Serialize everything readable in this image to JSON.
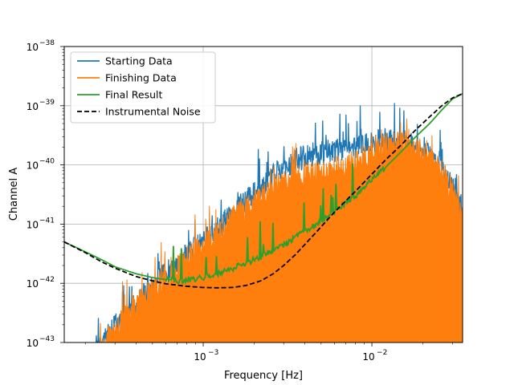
{
  "chart_data": {
    "type": "line",
    "title": "",
    "xlabel": "Frequency [Hz]",
    "ylabel": "Channel A",
    "xscale": "log",
    "yscale": "log",
    "xlim": [
      0.00015,
      0.0345
    ],
    "ylim": [
      1e-43,
      1e-38
    ],
    "grid": true,
    "legend_position": "top-left",
    "x_ticks": [
      {
        "value": 0.001,
        "label": "10",
        "exp": "−3"
      },
      {
        "value": 0.01,
        "label": "10",
        "exp": "−2"
      }
    ],
    "y_ticks": [
      {
        "value": 1e-43,
        "label": "10",
        "exp": "−43"
      },
      {
        "value": 1e-42,
        "label": "10",
        "exp": "−42"
      },
      {
        "value": 1e-41,
        "label": "10",
        "exp": "−41"
      },
      {
        "value": 1e-40,
        "label": "10",
        "exp": "−40"
      },
      {
        "value": 1e-39,
        "label": "10",
        "exp": "−39"
      },
      {
        "value": 1e-38,
        "label": "10",
        "exp": "−38"
      }
    ],
    "series": [
      {
        "name": "Starting Data",
        "color": "#1f77b4",
        "style": "solid",
        "x": [
          0.00023,
          0.00028,
          0.00035,
          0.00045,
          0.0006,
          0.0008,
          0.001,
          0.0013,
          0.0017,
          0.0022,
          0.0028,
          0.0035,
          0.0045,
          0.006,
          0.008,
          0.01,
          0.012,
          0.015,
          0.018,
          0.022,
          0.026,
          0.03,
          0.0345
        ],
        "y": [
          6e-44,
          1.5e-43,
          3e-43,
          6e-43,
          1.5e-42,
          3e-42,
          5e-42,
          1e-41,
          2.2e-41,
          4e-41,
          8e-41,
          1.2e-40,
          1.5e-40,
          1.8e-40,
          2.1e-40,
          2.4e-40,
          2.6e-40,
          2.5e-40,
          2.1e-40,
          1.4e-40,
          8e-41,
          4e-41,
          1.6e-41
        ]
      },
      {
        "name": "Finishing Data",
        "color": "#ff7f0e",
        "style": "filled",
        "x": [
          0.00023,
          0.00028,
          0.00035,
          0.00045,
          0.0006,
          0.0008,
          0.001,
          0.0013,
          0.0017,
          0.0022,
          0.0028,
          0.0035,
          0.0045,
          0.006,
          0.008,
          0.01,
          0.012,
          0.015,
          0.018,
          0.022,
          0.026,
          0.03,
          0.0345
        ],
        "y": [
          5e-44,
          1.3e-43,
          2.7e-43,
          5.5e-43,
          1.3e-42,
          2.6e-42,
          4.2e-42,
          8e-42,
          1.7e-41,
          2.8e-41,
          4.5e-41,
          6e-41,
          7e-41,
          8.5e-41,
          1.1e-40,
          1.6e-40,
          2.1e-40,
          2.3e-40,
          2e-40,
          1.3e-40,
          7.5e-41,
          3.5e-41,
          1.2e-41
        ]
      },
      {
        "name": "Final Result",
        "color": "#2ca02c",
        "style": "solid",
        "x": [
          0.00015,
          0.0002,
          0.00025,
          0.0003,
          0.0004,
          0.0005,
          0.0006,
          0.0007,
          0.0008,
          0.001,
          0.0012,
          0.0015,
          0.002,
          0.0025,
          0.003,
          0.004,
          0.005,
          0.006,
          0.008,
          0.01,
          0.012,
          0.015,
          0.018,
          0.022,
          0.026,
          0.03,
          0.0345
        ],
        "y": [
          5e-42,
          3.4e-42,
          2.5e-42,
          1.9e-42,
          1.45e-42,
          1.25e-42,
          1.15e-42,
          1.1e-42,
          1.12e-42,
          1.25e-42,
          1.45e-42,
          1.8e-42,
          2.5e-42,
          3.3e-42,
          4.5e-42,
          7.5e-42,
          1.1e-41,
          1.6e-41,
          3e-41,
          5.5e-41,
          9e-41,
          1.7e-40,
          2.9e-40,
          5e-40,
          8.5e-40,
          1.3e-39,
          1.6e-39
        ]
      },
      {
        "name": "Instrumental Noise",
        "color": "#000000",
        "style": "dashed",
        "x": [
          0.00015,
          0.0002,
          0.00025,
          0.0003,
          0.0004,
          0.0005,
          0.0006,
          0.0008,
          0.001,
          0.0012,
          0.0015,
          0.0018,
          0.0022,
          0.0026,
          0.003,
          0.0035,
          0.004,
          0.005,
          0.006,
          0.008,
          0.01,
          0.012,
          0.015,
          0.018,
          0.022,
          0.026,
          0.03,
          0.0345
        ],
        "y": [
          5e-42,
          3.3e-42,
          2.3e-42,
          1.8e-42,
          1.3e-42,
          1.1e-42,
          9.8e-43,
          8.9e-43,
          8.5e-43,
          8.4e-43,
          8.5e-43,
          9.2e-43,
          1.1e-42,
          1.45e-42,
          2e-42,
          3e-42,
          4.5e-42,
          9e-42,
          1.6e-41,
          3.6e-41,
          7e-41,
          1.2e-40,
          2.2e-40,
          3.8e-40,
          6.5e-40,
          1e-39,
          1.35e-39,
          1.6e-39
        ]
      }
    ]
  }
}
